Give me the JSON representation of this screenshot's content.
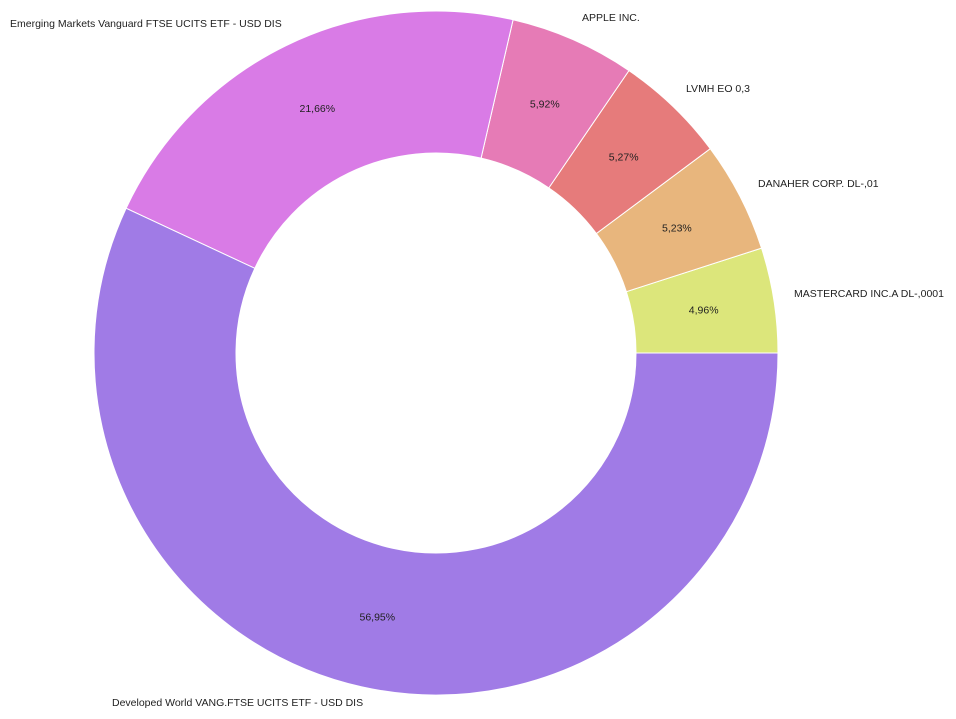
{
  "chart_data": {
    "type": "pie",
    "donut": true,
    "title": "",
    "slices": [
      {
        "label": "MASTERCARD INC.A DL-,0001",
        "value": 4.96,
        "value_label": "4,96%",
        "color": "#dce67b"
      },
      {
        "label": "DANAHER CORP. DL-,01",
        "value": 5.23,
        "value_label": "5,23%",
        "color": "#e8b67d"
      },
      {
        "label": "LVMH EO 0,3",
        "value": 5.27,
        "value_label": "5,27%",
        "color": "#e67b7b"
      },
      {
        "label": "APPLE INC.",
        "value": 5.92,
        "value_label": "5,92%",
        "color": "#e67bb6"
      },
      {
        "label": "Emerging Markets Vanguard FTSE UCITS ETF - USD DIS",
        "value": 21.66,
        "value_label": "21,66%",
        "color": "#d97be6"
      },
      {
        "label": "Developed World VANG.FTSE UCITS ETF - USD DIS",
        "value": 56.95,
        "value_label": "56,95%",
        "color": "#a07be6"
      }
    ],
    "start": "3 o'clock",
    "direction": "counter-clockwise"
  }
}
